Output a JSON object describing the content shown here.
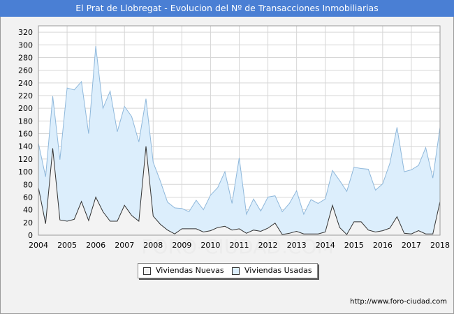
{
  "title": "El Prat de Llobregat - Evolucion del Nº de Transacciones Inmobiliarias",
  "source": "http://www.foro-ciudad.com",
  "watermark": "FORO-CIUDAD.COM",
  "chart_data": {
    "type": "area",
    "title": "El Prat de Llobregat - Evolucion del Nº de Transacciones Inmobiliarias",
    "xlabel": "",
    "ylabel": "",
    "xlim": [
      2004,
      2018
    ],
    "ylim": [
      0,
      330
    ],
    "x_ticks": [
      "2004",
      "2005",
      "2006",
      "2007",
      "2008",
      "2009",
      "2010",
      "2011",
      "2012",
      "2013",
      "2014",
      "2015",
      "2016",
      "2017",
      "2018"
    ],
    "y_ticks": [
      0,
      20,
      40,
      60,
      80,
      100,
      120,
      140,
      160,
      180,
      200,
      220,
      240,
      260,
      280,
      300,
      320
    ],
    "grid": true,
    "legend_position": "bottom-center",
    "x": [
      2004,
      2004.25,
      2004.5,
      2004.75,
      2005,
      2005.25,
      2005.5,
      2005.75,
      2006,
      2006.25,
      2006.5,
      2006.75,
      2007,
      2007.25,
      2007.5,
      2007.75,
      2008,
      2008.25,
      2008.5,
      2008.75,
      2009,
      2009.25,
      2009.5,
      2009.75,
      2010,
      2010.25,
      2010.5,
      2010.75,
      2011,
      2011.25,
      2011.5,
      2011.75,
      2012,
      2012.25,
      2012.5,
      2012.75,
      2013,
      2013.25,
      2013.5,
      2013.75,
      2014,
      2014.25,
      2014.5,
      2014.75,
      2015,
      2015.25,
      2015.5,
      2015.75,
      2016,
      2016.25,
      2016.5,
      2016.75,
      2017,
      2017.25,
      2017.5,
      2017.75,
      2018
    ],
    "series": [
      {
        "name": "Viviendas Nuevas",
        "color": "#333333",
        "fill": "#f3f3f3",
        "values": [
          75,
          18,
          137,
          24,
          22,
          25,
          53,
          23,
          60,
          37,
          22,
          22,
          47,
          31,
          22,
          140,
          30,
          17,
          8,
          2,
          10,
          10,
          10,
          5,
          7,
          12,
          14,
          8,
          10,
          3,
          8,
          6,
          11,
          19,
          1,
          3,
          6,
          2,
          2,
          2,
          5,
          47,
          12,
          1,
          21,
          21,
          8,
          5,
          7,
          11,
          29,
          3,
          2,
          7,
          2,
          2,
          53
        ]
      },
      {
        "name": "Viviendas Usadas",
        "color": "#8fb8db",
        "fill": "#dceefc",
        "values": [
          145,
          92,
          219,
          119,
          232,
          229,
          242,
          160,
          298,
          200,
          227,
          163,
          203,
          187,
          147,
          215,
          115,
          85,
          52,
          43,
          42,
          37,
          55,
          40,
          63,
          75,
          100,
          50,
          122,
          33,
          57,
          38,
          60,
          62,
          37,
          50,
          70,
          33,
          56,
          50,
          57,
          102,
          86,
          69,
          107,
          105,
          104,
          71,
          81,
          113,
          170,
          100,
          103,
          110,
          138,
          90,
          170
        ]
      }
    ]
  },
  "legend": {
    "nuevas_label": "Viviendas Nuevas",
    "usadas_label": "Viviendas Usadas"
  }
}
